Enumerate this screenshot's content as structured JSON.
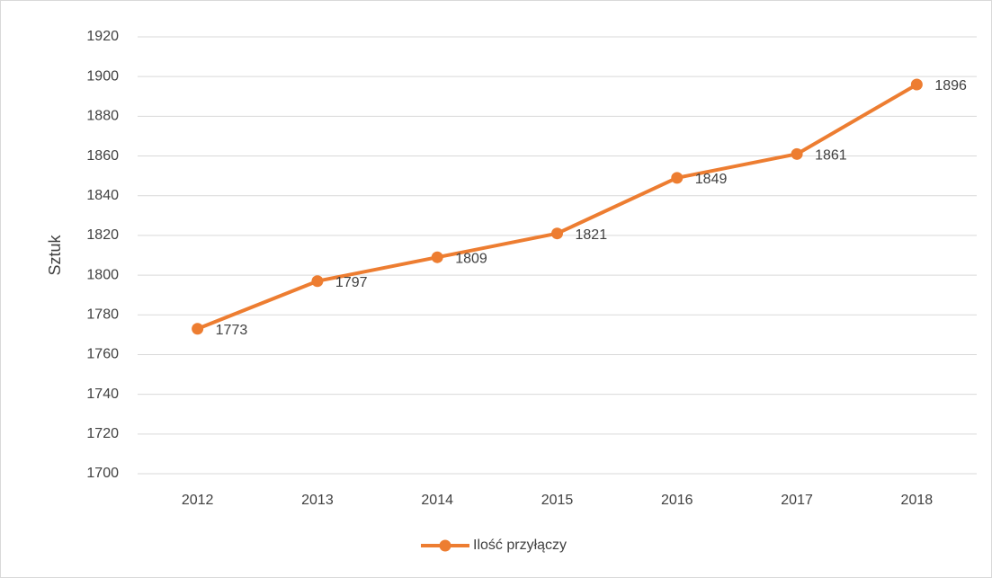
{
  "chart_data": {
    "type": "line",
    "categories": [
      "2012",
      "2013",
      "2014",
      "2015",
      "2016",
      "2017",
      "2018"
    ],
    "series": [
      {
        "name": "Ilość przyłączy",
        "color": "#ed7d31",
        "values": [
          1773,
          1797,
          1809,
          1821,
          1849,
          1861,
          1896
        ]
      }
    ],
    "y_label": "Sztuk",
    "ylim": [
      1700,
      1920
    ],
    "yticks": [
      1700,
      1720,
      1740,
      1760,
      1780,
      1800,
      1820,
      1840,
      1860,
      1880,
      1900,
      1920
    ],
    "grid": true,
    "legend": "bottom"
  }
}
